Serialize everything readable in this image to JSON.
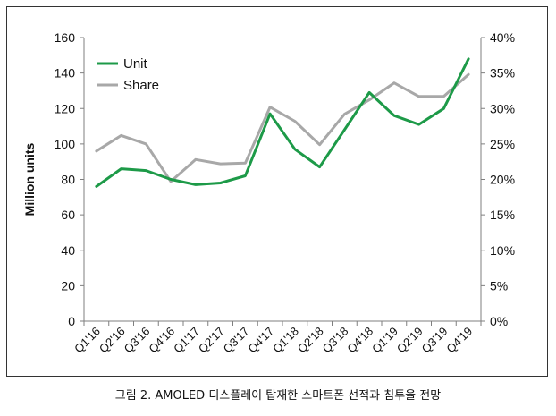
{
  "figure": {
    "caption": "그림 2. AMOLED 디스플레이 탑재한 스마트폰 선적과 침투율 전망"
  },
  "colors": {
    "unit": "#1d9a48",
    "share": "#a8a8a8",
    "axis": "#7f7f7f",
    "text": "#111111"
  },
  "chart_data": {
    "type": "line",
    "title": "",
    "xlabel": "",
    "ylabel": "Million units",
    "y2label": "",
    "categories": [
      "Q1'16",
      "Q2'16",
      "Q3'16",
      "Q4'16",
      "Q1'17",
      "Q2'17",
      "Q3'17",
      "Q4'17",
      "Q1'18",
      "Q2'18",
      "Q3'18",
      "Q4'18",
      "Q1'19",
      "Q2'19",
      "Q3'19",
      "Q4'19"
    ],
    "ylim": [
      0,
      160
    ],
    "yticks": [
      0,
      20,
      40,
      60,
      80,
      100,
      120,
      140,
      160
    ],
    "y2lim": [
      0,
      40
    ],
    "y2ticks": [
      "0%",
      "5%",
      "10%",
      "15%",
      "20%",
      "25%",
      "30%",
      "35%",
      "40%"
    ],
    "grid": false,
    "legend_position": "top-left",
    "series": [
      {
        "name": "Unit",
        "axis": "left",
        "color": "#1d9a48",
        "values": [
          76,
          86,
          85,
          80,
          77,
          78,
          82,
          117,
          97,
          87,
          108,
          129,
          116,
          111,
          120,
          148
        ]
      },
      {
        "name": "Share",
        "axis": "right",
        "unit": "%",
        "color": "#a8a8a8",
        "values": [
          24.0,
          26.2,
          25.0,
          19.7,
          22.8,
          22.2,
          22.3,
          30.2,
          28.2,
          24.9,
          29.2,
          31.2,
          33.6,
          31.7,
          31.7,
          34.8
        ]
      }
    ]
  }
}
